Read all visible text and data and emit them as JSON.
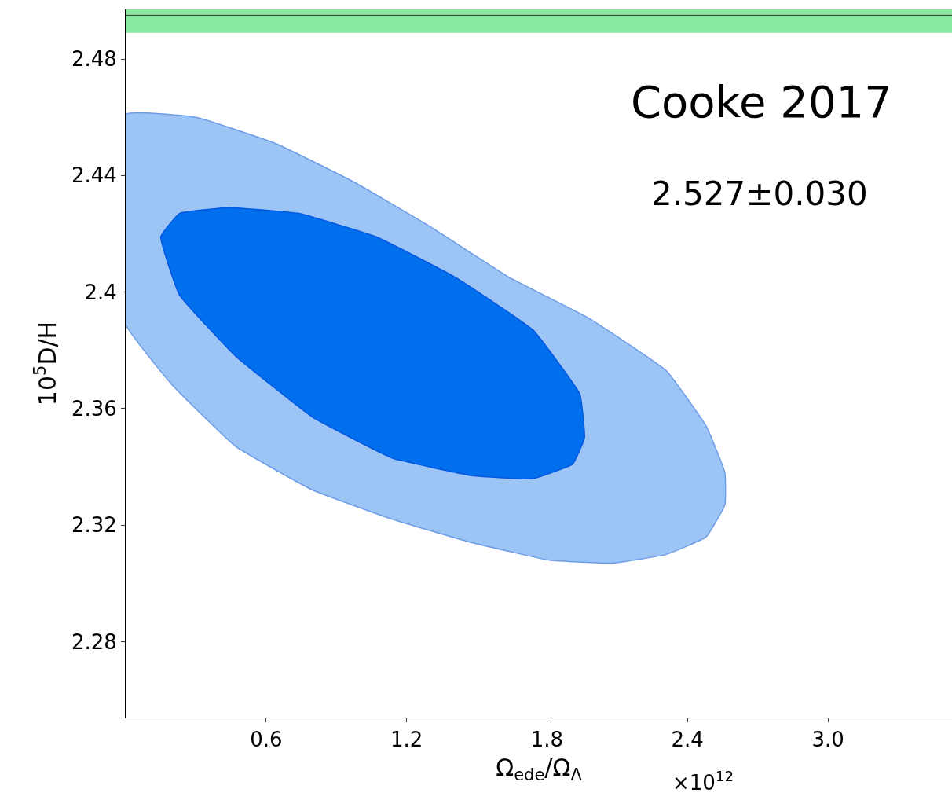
{
  "chart_data": {
    "type": "area",
    "xlabel": "Ω$_{ede}$/Ω$_{Λ}$",
    "ylabel": "10$^{5}$D/H",
    "annotations": [
      "Cooke 2017",
      "2.527±0.030",
      "×10$^{12}$"
    ],
    "series": [
      {
        "color": "#9cc4f5",
        "x": [
          0,
          0.3,
          0.64,
          0.97,
          1.31,
          1.64,
          1.98,
          2.31,
          2.48,
          2.56,
          2.56,
          2.48,
          2.31,
          2.08,
          1.81,
          1.48,
          1.14,
          0.8,
          0.47,
          0.2,
          0,
          0
        ],
        "values": [
          2.461,
          2.46,
          2.451,
          2.438,
          2.422,
          2.405,
          2.391,
          2.373,
          2.354,
          2.338,
          2.327,
          2.316,
          2.31,
          2.307,
          2.308,
          2.314,
          2.322,
          2.332,
          2.347,
          2.368,
          2.389,
          2.461
        ]
      },
      {
        "color": "#006fed",
        "x": [
          0.15,
          0.23,
          0.44,
          0.74,
          1.07,
          1.41,
          1.74,
          1.94,
          1.96,
          1.91,
          1.74,
          1.48,
          1.14,
          0.8,
          0.47,
          0.23,
          0.15
        ],
        "values": [
          2.419,
          2.427,
          2.429,
          2.427,
          2.419,
          2.405,
          2.387,
          2.365,
          2.35,
          2.341,
          2.336,
          2.337,
          2.343,
          2.357,
          2.378,
          2.399,
          2.419
        ]
      }
    ],
    "bands": [
      {
        "axis": "y",
        "from": 2.489,
        "to": 2.497,
        "color": "#88e8a0"
      }
    ],
    "ref_lines": [
      {
        "axis": "y",
        "value": 2.495,
        "color": "#2d3a2d"
      }
    ],
    "xlim": [
      0,
      3.53
    ],
    "ylim": [
      2.254,
      2.497
    ],
    "xticks": [
      0.6,
      1.2,
      1.8,
      2.4,
      {
        "value": 3.0,
        "label": "3.0"
      }
    ],
    "yticks": [
      2.28,
      2.32,
      2.36,
      {
        "value": 2.4,
        "label": "2.4"
      },
      2.44,
      2.48
    ],
    "tick_labels": true
  }
}
